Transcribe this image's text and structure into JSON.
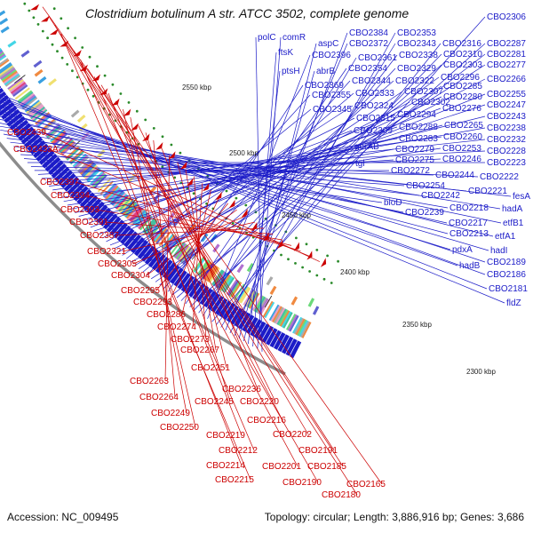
{
  "title": "Clostridium botulinum A str. ATCC 3502, complete genome",
  "accession": "Accession: NC_009495",
  "summary": "Topology: circular; Length: 3,886,916 bp; Genes: 3,686",
  "colors": {
    "forward": "#1c1cc8",
    "reverse": "#cc0000",
    "backbone": "#8c8c8c",
    "dots": "#2a8a2a"
  },
  "ticks": [
    "2550 kbp",
    "2500 kbp",
    "2450 kbp",
    "2400 kbp",
    "2350 kbp",
    "2300 kbp"
  ],
  "forward_genes": [
    "polC",
    "comR",
    "ftsK",
    "ptsH",
    "aspC",
    "abrB",
    "CBO2384",
    "CBO2353",
    "CBO2372",
    "CBO2343",
    "CBO2316",
    "CBO2306",
    "CBO2396",
    "CBO2361",
    "CBO2338",
    "CBO2310",
    "CBO2287",
    "CBO2354",
    "CBO2329",
    "CBO2303",
    "CBO2281",
    "CBO2369",
    "CBO2344",
    "CBO2322",
    "CBO2296",
    "CBO2277",
    "CBO2355",
    "CBO2333",
    "CBO2307",
    "CBO2285",
    "CBO2266",
    "CBO2345",
    "CBO2324",
    "CBO2302",
    "CBO2280",
    "CBO2255",
    "CBO2315",
    "CBO2294",
    "CBO2276",
    "CBO2247",
    "CBO2309",
    "CBO2288",
    "CBO2265",
    "CBO2243",
    "gerAB",
    "CBO2279",
    "CBO2253",
    "CBO2238",
    "tgl",
    "CBO2283",
    "CBO2260",
    "CBO2232",
    "CBO2275",
    "CBO2246",
    "CBO2228",
    "CBO2272",
    "CBO2244",
    "CBO2223",
    "CBO2254",
    "CBO2222",
    "bioD",
    "CBO2242",
    "CBO2221",
    "fesA",
    "CBO2239",
    "CBO2218",
    "hadA",
    "CBO2217",
    "etfB1",
    "CBO2213",
    "etfA1",
    "pdxA",
    "hadI",
    "hadB",
    "CBO2189",
    "CBO2186",
    "CBO2181",
    "fldZ"
  ],
  "reverse_genes": [
    "CBO2439",
    "CBO2433A",
    "CBO2397",
    "CBO2394",
    "CBO2393",
    "CBO2391",
    "CBO2387",
    "CBO2321",
    "CBO2305",
    "CBO2304",
    "CBO2295",
    "CBO2293",
    "CBO2286",
    "CBO2274",
    "CBO2273",
    "CBO2267",
    "CBO2251",
    "CBO2263",
    "CBO2236",
    "CBO2264",
    "CBO2245",
    "CBO2220",
    "CBO2249",
    "CBO2250",
    "CBO2216",
    "CBO2219",
    "CBO2202",
    "CBO2212",
    "CBO2191",
    "CBO2214",
    "CBO2201",
    "CBO2185",
    "CBO2215",
    "CBO2190",
    "CBO2180",
    "CBO2165"
  ]
}
